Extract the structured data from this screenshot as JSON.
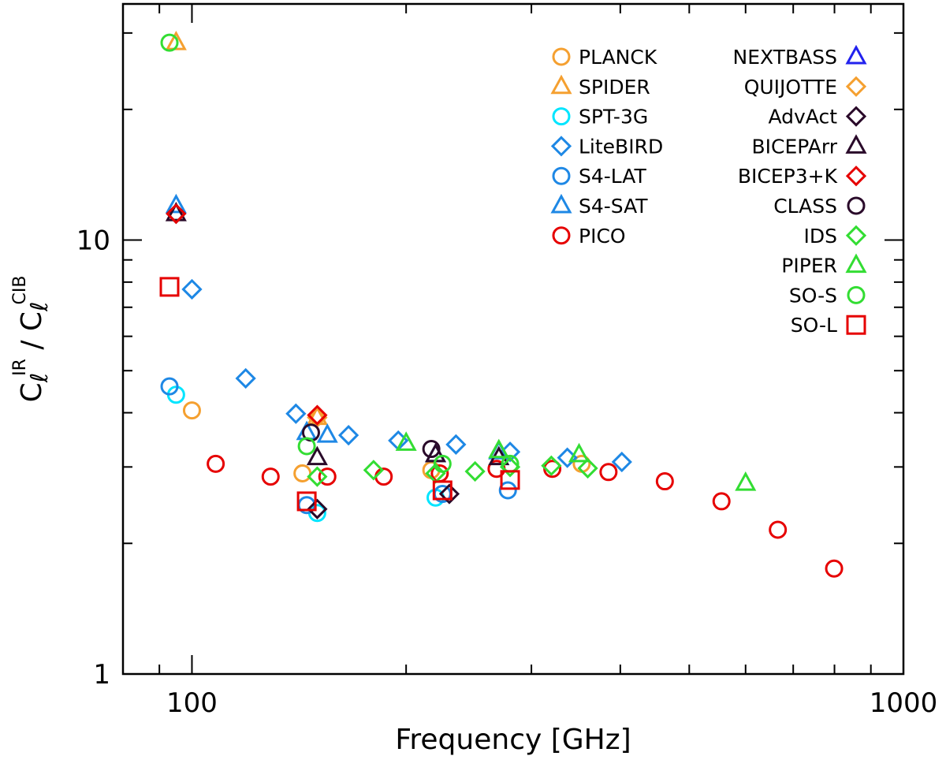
{
  "chart_data": {
    "type": "scatter",
    "title": "",
    "xlabel": "Frequency [GHz]",
    "ylabel": {
      "base": "C",
      "sub": "ℓ",
      "sup_num": "IR",
      "sup_den": "CIB",
      "sep": " / "
    },
    "xscale": "log",
    "yscale": "log",
    "xlim": [
      80,
      1000
    ],
    "ylim": [
      1,
      35
    ],
    "x_ticks": [
      {
        "value": 100,
        "label": "100"
      },
      {
        "value": 1000,
        "label": "1000"
      }
    ],
    "y_ticks": [
      {
        "value": 1,
        "label": "1"
      },
      {
        "value": 10,
        "label": "10"
      }
    ],
    "legend_position": "top-right",
    "series": [
      {
        "name": "PLANCK",
        "marker": "circle",
        "color": "#f5a030",
        "points": [
          [
            100,
            4.05
          ],
          [
            143,
            2.9
          ],
          [
            217,
            2.95
          ],
          [
            353,
            3.05
          ]
        ]
      },
      {
        "name": "SPIDER",
        "marker": "triangle",
        "color": "#f5a030",
        "points": [
          [
            95,
            28.5
          ],
          [
            150,
            3.9
          ]
        ]
      },
      {
        "name": "SPT-3G",
        "marker": "circle",
        "color": "#00e5ff",
        "points": [
          [
            95,
            4.4
          ],
          [
            150,
            2.35
          ],
          [
            220,
            2.55
          ]
        ]
      },
      {
        "name": "LiteBIRD",
        "marker": "diamond",
        "color": "#1e88e5",
        "points": [
          [
            100,
            7.7
          ],
          [
            119,
            4.8
          ],
          [
            140,
            3.98
          ],
          [
            166,
            3.55
          ],
          [
            195,
            3.45
          ],
          [
            235,
            3.38
          ],
          [
            280,
            3.25
          ],
          [
            337,
            3.15
          ],
          [
            402,
            3.08
          ]
        ]
      },
      {
        "name": "S4-LAT",
        "marker": "circle",
        "color": "#1e88e5",
        "points": [
          [
            93,
            4.6
          ],
          [
            145,
            2.45
          ],
          [
            225,
            2.6
          ],
          [
            278,
            2.65
          ]
        ]
      },
      {
        "name": "S4-SAT",
        "marker": "triangle",
        "color": "#1e88e5",
        "points": [
          [
            95,
            12.0
          ],
          [
            145,
            3.6
          ],
          [
            155,
            3.55
          ],
          [
            220,
            3.2
          ],
          [
            270,
            3.25
          ]
        ]
      },
      {
        "name": "PICO",
        "marker": "circle",
        "color": "#e60000",
        "points": [
          [
            108,
            3.05
          ],
          [
            129,
            2.85
          ],
          [
            155,
            2.85
          ],
          [
            186,
            2.85
          ],
          [
            223,
            2.9
          ],
          [
            268,
            2.97
          ],
          [
            321,
            2.97
          ],
          [
            385,
            2.92
          ],
          [
            462,
            2.78
          ],
          [
            555,
            2.5
          ],
          [
            666,
            2.15
          ],
          [
            799,
            1.75
          ]
        ]
      },
      {
        "name": "NEXTBASS",
        "marker": "triangle",
        "color": "#2222ee",
        "points": []
      },
      {
        "name": "QUIJOTTE",
        "marker": "diamond",
        "color": "#f5a030",
        "points": [
          [
            150,
            3.9
          ]
        ]
      },
      {
        "name": "AdvAct",
        "marker": "diamond",
        "color": "#2a0a2a",
        "points": [
          [
            95,
            11.5
          ],
          [
            150,
            2.4
          ],
          [
            230,
            2.6
          ]
        ]
      },
      {
        "name": "BICEPArr",
        "marker": "triangle",
        "color": "#2a0a2a",
        "points": [
          [
            95,
            11.5
          ],
          [
            150,
            3.15
          ],
          [
            220,
            3.2
          ],
          [
            270,
            3.15
          ]
        ]
      },
      {
        "name": "BICEP3+K",
        "marker": "diamond",
        "color": "#e60000",
        "points": [
          [
            95,
            11.5
          ],
          [
            150,
            3.95
          ]
        ]
      },
      {
        "name": "CLASS",
        "marker": "circle",
        "color": "#2a0a2a",
        "points": [
          [
            147,
            3.6
          ],
          [
            217,
            3.3
          ]
        ]
      },
      {
        "name": "IDS",
        "marker": "diamond",
        "color": "#33dd33",
        "points": [
          [
            150,
            2.85
          ],
          [
            180,
            2.95
          ],
          [
            220,
            2.9
          ],
          [
            250,
            2.93
          ],
          [
            280,
            3.0
          ],
          [
            320,
            3.02
          ],
          [
            360,
            2.98
          ]
        ]
      },
      {
        "name": "PIPER",
        "marker": "triangle",
        "color": "#33dd33",
        "points": [
          [
            200,
            3.4
          ],
          [
            270,
            3.27
          ],
          [
            350,
            3.2
          ],
          [
            600,
            2.75
          ]
        ]
      },
      {
        "name": "SO-S",
        "marker": "circle",
        "color": "#33dd33",
        "points": [
          [
            93,
            28.5
          ],
          [
            145,
            3.35
          ],
          [
            225,
            3.05
          ],
          [
            280,
            3.05
          ]
        ]
      },
      {
        "name": "SO-L",
        "marker": "square",
        "color": "#e60000",
        "points": [
          [
            93,
            7.8
          ],
          [
            145,
            2.5
          ],
          [
            225,
            2.65
          ],
          [
            280,
            2.8
          ]
        ]
      }
    ]
  }
}
